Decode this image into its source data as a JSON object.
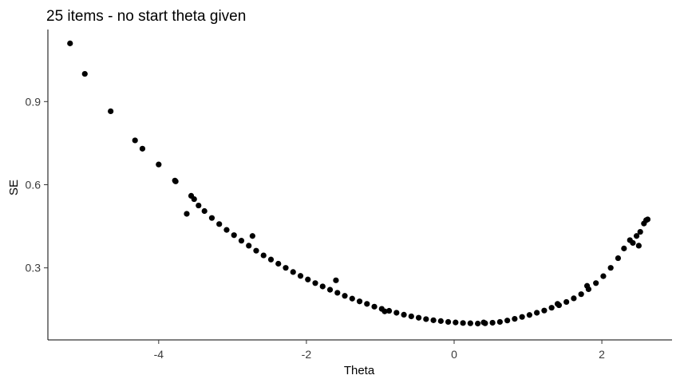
{
  "chart_data": {
    "type": "scatter",
    "title": "25 items - no start theta given",
    "xlabel": "Theta",
    "ylabel": "SE",
    "xlim": [
      -5.5,
      2.95
    ],
    "ylim": [
      0.04,
      1.16
    ],
    "x_ticks": [
      -4,
      -2,
      0,
      2
    ],
    "x_tick_labels": [
      "-4",
      "-2",
      "0",
      "2"
    ],
    "y_ticks": [
      0.3,
      0.6,
      0.9
    ],
    "y_tick_labels": [
      "0.3",
      "0.6",
      "0.9"
    ],
    "grid": false,
    "legend": "none",
    "point_color": "#000000",
    "series": [
      {
        "x": [
          -5.2,
          -5.0,
          -4.65,
          -4.32,
          -4.22,
          -4.0,
          -3.78,
          -3.77,
          -3.62,
          -3.56,
          -3.52,
          -3.46,
          -3.38,
          -3.28,
          -3.18,
          -3.08,
          -2.98,
          -2.88,
          -2.78,
          -2.73,
          -2.68,
          -2.58,
          -2.48,
          -2.38,
          -2.28,
          -2.18,
          -2.08,
          -1.98,
          -1.88,
          -1.78,
          -1.68,
          -1.6,
          -1.58,
          -1.48,
          -1.38,
          -1.28,
          -1.18,
          -1.08,
          -0.98,
          -0.94,
          -0.88,
          -0.78,
          -0.68,
          -0.58,
          -0.48,
          -0.38,
          -0.28,
          -0.18,
          -0.08,
          0.02,
          0.12,
          0.22,
          0.32,
          0.4,
          0.42,
          0.52,
          0.62,
          0.72,
          0.82,
          0.92,
          1.02,
          1.12,
          1.22,
          1.32,
          1.4,
          1.42,
          1.52,
          1.62,
          1.72,
          1.8,
          1.82,
          1.92,
          2.02,
          2.12,
          2.22,
          2.3,
          2.38,
          2.42,
          2.47,
          2.5,
          2.52,
          2.57,
          2.6,
          2.62
        ],
        "y": [
          1.11,
          1.0,
          0.865,
          0.76,
          0.73,
          0.673,
          0.615,
          0.612,
          0.495,
          0.56,
          0.548,
          0.525,
          0.505,
          0.48,
          0.458,
          0.437,
          0.418,
          0.398,
          0.38,
          0.415,
          0.362,
          0.345,
          0.33,
          0.315,
          0.3,
          0.285,
          0.271,
          0.258,
          0.245,
          0.233,
          0.221,
          0.255,
          0.21,
          0.199,
          0.189,
          0.179,
          0.17,
          0.16,
          0.152,
          0.143,
          0.145,
          0.138,
          0.131,
          0.125,
          0.12,
          0.115,
          0.111,
          0.108,
          0.105,
          0.103,
          0.101,
          0.1,
          0.099,
          0.103,
          0.1,
          0.102,
          0.105,
          0.11,
          0.116,
          0.123,
          0.13,
          0.138,
          0.146,
          0.156,
          0.17,
          0.165,
          0.177,
          0.19,
          0.205,
          0.235,
          0.223,
          0.245,
          0.27,
          0.3,
          0.335,
          0.37,
          0.4,
          0.39,
          0.415,
          0.38,
          0.43,
          0.46,
          0.472,
          0.475
        ]
      }
    ]
  }
}
